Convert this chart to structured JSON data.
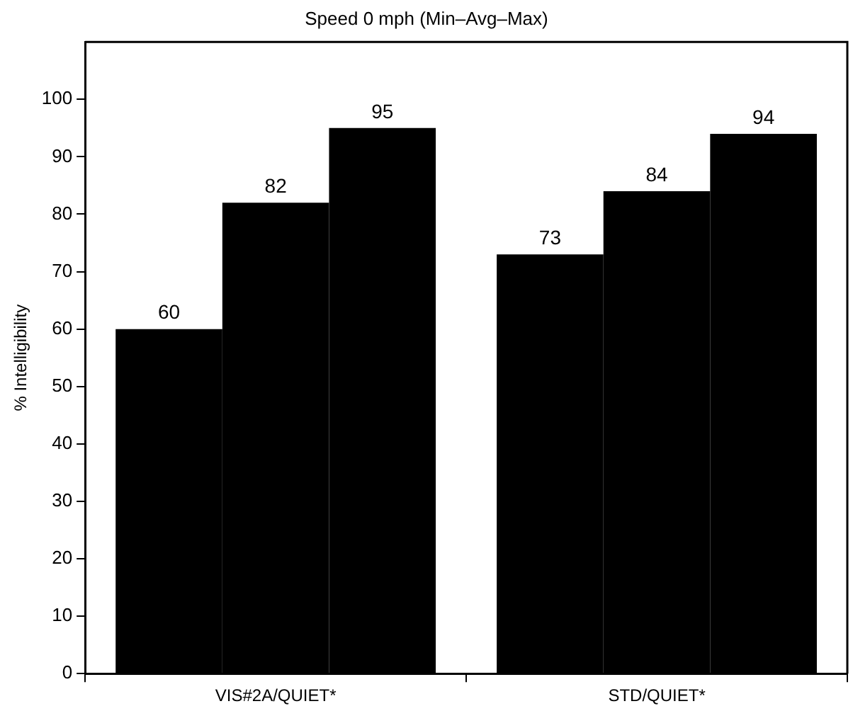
{
  "chart_data": {
    "type": "bar",
    "title": "Speed 0 mph (Min–Avg–Max)",
    "ylabel": "% Intelligibility",
    "categories": [
      "VIS#2A/QUIET*",
      "STD/QUIET*"
    ],
    "series": [
      {
        "color": "#000000",
        "values": [
          60,
          73
        ]
      },
      {
        "color": "#000000",
        "values": [
          82,
          84
        ]
      },
      {
        "color": "#000000",
        "values": [
          95,
          94
        ]
      }
    ],
    "ylim": [
      0,
      110
    ],
    "yticks": [
      0,
      10,
      20,
      30,
      40,
      50,
      60,
      70,
      80,
      90,
      100
    ],
    "data_labels": true
  }
}
